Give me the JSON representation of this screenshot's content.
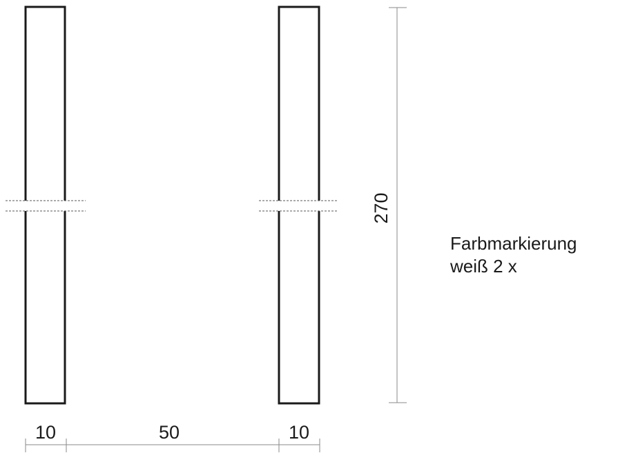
{
  "dimensions": {
    "left_width": "10",
    "gap_width": "50",
    "right_width": "10",
    "height": "270"
  },
  "note": {
    "line1": "Farbmarkierung",
    "line2": "weiß 2 x"
  }
}
